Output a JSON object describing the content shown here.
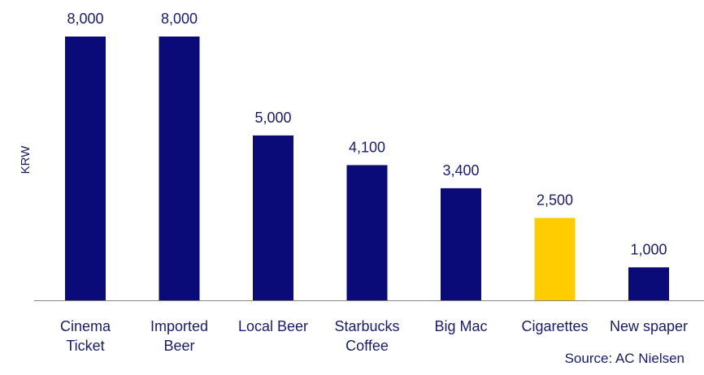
{
  "chart_data": {
    "type": "bar",
    "categories": [
      "Cinema Ticket",
      "Imported Beer",
      "Local Beer",
      "Starbucks Coffee",
      "Big Mac",
      "Cigarettes",
      "New spaper"
    ],
    "category_lines": [
      [
        "Cinema",
        "Ticket"
      ],
      [
        "Imported",
        "Beer"
      ],
      [
        "Local Beer"
      ],
      [
        "Starbucks",
        "Coffee"
      ],
      [
        "Big Mac"
      ],
      [
        "Cigarettes"
      ],
      [
        "New spaper"
      ]
    ],
    "values": [
      8000,
      8000,
      5000,
      4100,
      3400,
      2500,
      1000
    ],
    "value_labels": [
      "8,000",
      "8,000",
      "5,000",
      "4,100",
      "3,400",
      "2,500",
      "1,000"
    ],
    "colors": [
      "#0a0a78",
      "#0a0a78",
      "#0a0a78",
      "#0a0a78",
      "#0a0a78",
      "#ffcc00",
      "#0a0a78"
    ],
    "ylabel": "KRW",
    "xlabel": "",
    "ylim": [
      0,
      8000
    ],
    "grid": false,
    "source": "Source: AC Nielsen"
  }
}
